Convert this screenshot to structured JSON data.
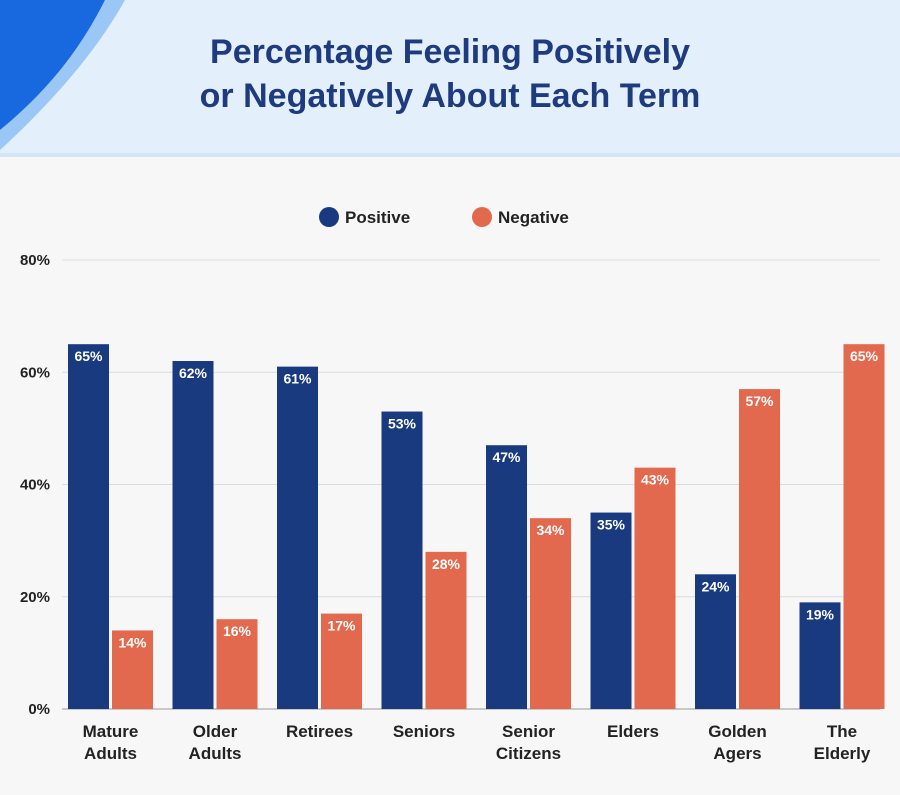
{
  "header": {
    "title_line1": "Percentage Feeling Positively",
    "title_line2": "or Negatively About Each Term"
  },
  "colors": {
    "positive": "#1a3a7f",
    "negative": "#e2694e",
    "title": "#1f3b80",
    "header_bg": "#e3f0fb",
    "accent": "#1868e0"
  },
  "chart_data": {
    "type": "bar",
    "title": "Percentage Feeling Positively or Negatively About Each Term",
    "categories": [
      [
        "Mature",
        "Adults"
      ],
      [
        "Older",
        "Adults"
      ],
      [
        "Retirees"
      ],
      [
        "Seniors"
      ],
      [
        "Senior",
        "Citizens"
      ],
      [
        "Elders"
      ],
      [
        "Golden",
        "Agers"
      ],
      [
        "The",
        "Elderly"
      ]
    ],
    "series": [
      {
        "name": "Positive",
        "values": [
          65,
          62,
          61,
          53,
          47,
          35,
          24,
          19
        ]
      },
      {
        "name": "Negative",
        "values": [
          14,
          16,
          17,
          28,
          34,
          43,
          57,
          65
        ]
      }
    ],
    "value_suffix": "%",
    "ylim": [
      0,
      80
    ],
    "yticks": [
      "0%",
      "20%",
      "40%",
      "60%",
      "80%"
    ],
    "grid": true,
    "legend_position": "top-center"
  }
}
